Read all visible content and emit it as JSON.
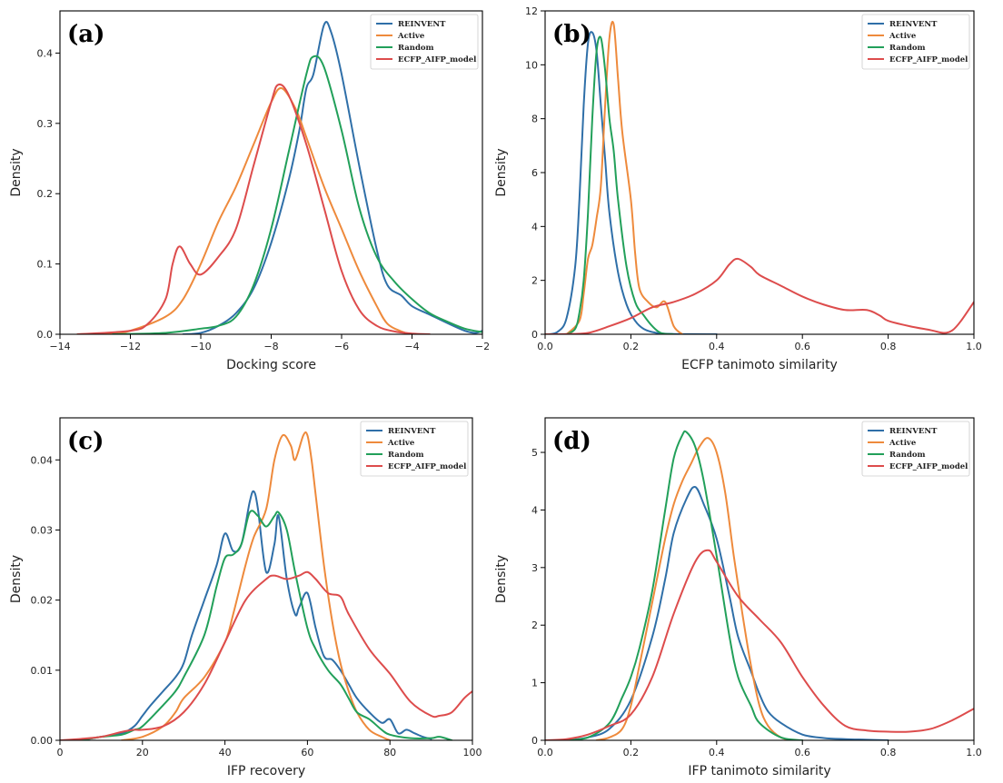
{
  "colors": {
    "REINVENT": "#2f6fa8",
    "Active": "#ee8a3c",
    "Random": "#22a05a",
    "ECFP_AIFP_model": "#dd4c4c"
  },
  "chart_data": [
    {
      "type": "line",
      "panel_label": "(a)",
      "title": "",
      "xlabel": "Docking score",
      "ylabel": "Density",
      "xlim": [
        -14,
        -2
      ],
      "ylim": [
        0,
        0.46
      ],
      "xticks": [
        -14,
        -12,
        -10,
        -8,
        -6,
        -4,
        -2
      ],
      "xtick_labels": [
        "−14",
        "−12",
        "−10",
        "−8",
        "−6",
        "−4",
        "−2"
      ],
      "yticks": [
        0.0,
        0.1,
        0.2,
        0.3,
        0.4
      ],
      "ytick_labels": [
        "0.0",
        "0.1",
        "0.2",
        "0.3",
        "0.4"
      ],
      "legend": "top-right",
      "series": [
        {
          "name": "REINVENT",
          "x": [
            -10.5,
            -10,
            -9.5,
            -9,
            -8.5,
            -8,
            -7.5,
            -7.2,
            -7,
            -6.8,
            -6.5,
            -6.3,
            -6,
            -5.5,
            -5,
            -4.7,
            -4.3,
            -4,
            -3.5,
            -3,
            -2.5,
            -2.2,
            -2
          ],
          "y": [
            0,
            0.002,
            0.012,
            0.03,
            0.065,
            0.13,
            0.22,
            0.29,
            0.35,
            0.37,
            0.44,
            0.43,
            0.37,
            0.24,
            0.12,
            0.07,
            0.055,
            0.04,
            0.028,
            0.016,
            0.005,
            0.002,
            0.005
          ]
        },
        {
          "name": "Active",
          "x": [
            -13.5,
            -12.5,
            -12,
            -11,
            -10.5,
            -10,
            -9.5,
            -9,
            -8.5,
            -8,
            -7.7,
            -7.3,
            -7,
            -6.5,
            -6,
            -5.5,
            -5,
            -4.7,
            -4.3,
            -4
          ],
          "y": [
            0,
            0.002,
            0.005,
            0.025,
            0.05,
            0.1,
            0.16,
            0.21,
            0.27,
            0.33,
            0.35,
            0.32,
            0.28,
            0.21,
            0.15,
            0.09,
            0.04,
            0.015,
            0.004,
            0
          ]
        },
        {
          "name": "Random",
          "x": [
            -12.5,
            -11,
            -10,
            -9.5,
            -9,
            -8.5,
            -8,
            -7.5,
            -7,
            -6.8,
            -6.5,
            -6,
            -5.5,
            -5,
            -4.5,
            -4,
            -3.5,
            -3,
            -2.5,
            -2
          ],
          "y": [
            0,
            0.002,
            0.008,
            0.012,
            0.025,
            0.07,
            0.15,
            0.26,
            0.37,
            0.395,
            0.38,
            0.29,
            0.18,
            0.11,
            0.075,
            0.05,
            0.03,
            0.018,
            0.008,
            0.003
          ]
        },
        {
          "name": "ECFP_AIFP_model",
          "x": [
            -13.5,
            -12,
            -11.5,
            -11,
            -10.8,
            -10.6,
            -10.3,
            -10,
            -9.5,
            -9,
            -8.5,
            -8,
            -7.8,
            -7.5,
            -7,
            -6.5,
            -6,
            -5.5,
            -5,
            -4.5,
            -4,
            -3.5
          ],
          "y": [
            0,
            0.005,
            0.015,
            0.05,
            0.1,
            0.125,
            0.1,
            0.085,
            0.11,
            0.15,
            0.24,
            0.33,
            0.355,
            0.34,
            0.27,
            0.18,
            0.09,
            0.035,
            0.012,
            0.004,
            0.001,
            0
          ]
        }
      ]
    },
    {
      "type": "line",
      "panel_label": "(b)",
      "title": "",
      "xlabel": "ECFP tanimoto similarity",
      "ylabel": "Density",
      "xlim": [
        0,
        1
      ],
      "ylim": [
        0,
        12
      ],
      "xticks": [
        0,
        0.2,
        0.4,
        0.6,
        0.8,
        1.0
      ],
      "xtick_labels": [
        "0.0",
        "0.2",
        "0.4",
        "0.6",
        "0.8",
        "1.0"
      ],
      "yticks": [
        0,
        2,
        4,
        6,
        8,
        10,
        12
      ],
      "ytick_labels": [
        "0",
        "2",
        "4",
        "6",
        "8",
        "10",
        "12"
      ],
      "legend": "top-right",
      "series": [
        {
          "name": "REINVENT",
          "x": [
            0.01,
            0.03,
            0.05,
            0.07,
            0.08,
            0.09,
            0.1,
            0.11,
            0.12,
            0.13,
            0.14,
            0.15,
            0.17,
            0.19,
            0.21,
            0.23,
            0.26,
            0.3,
            0.4
          ],
          "y": [
            0,
            0.1,
            0.6,
            2.5,
            5,
            8.5,
            10.8,
            11.2,
            10.5,
            8.5,
            6.5,
            4.5,
            2.3,
            1.1,
            0.5,
            0.2,
            0.05,
            0.01,
            0
          ]
        },
        {
          "name": "Active",
          "x": [
            0.05,
            0.08,
            0.09,
            0.1,
            0.11,
            0.12,
            0.13,
            0.14,
            0.15,
            0.16,
            0.17,
            0.18,
            0.2,
            0.21,
            0.22,
            0.24,
            0.26,
            0.28,
            0.3,
            0.32
          ],
          "y": [
            0,
            0.5,
            1.5,
            2.8,
            3.3,
            4.3,
            5.5,
            8.5,
            11,
            11.5,
            9.5,
            7.5,
            5,
            3,
            1.7,
            1.2,
            1,
            1.2,
            0.3,
            0
          ]
        },
        {
          "name": "Random",
          "x": [
            0.05,
            0.07,
            0.08,
            0.09,
            0.1,
            0.11,
            0.12,
            0.13,
            0.14,
            0.15,
            0.16,
            0.17,
            0.19,
            0.21,
            0.23,
            0.25,
            0.27,
            0.3
          ],
          "y": [
            0,
            0.2,
            0.8,
            2,
            4.5,
            8,
            10.5,
            11,
            9.8,
            8,
            6.8,
            5,
            2.5,
            1.2,
            0.7,
            0.3,
            0.05,
            0
          ]
        },
        {
          "name": "ECFP_AIFP_model",
          "x": [
            0,
            0.05,
            0.1,
            0.15,
            0.2,
            0.25,
            0.3,
            0.35,
            0.4,
            0.43,
            0.45,
            0.48,
            0.5,
            0.55,
            0.6,
            0.65,
            0.7,
            0.75,
            0.78,
            0.8,
            0.85,
            0.9,
            0.93,
            0.95,
            0.97,
            1.0
          ],
          "y": [
            0,
            0.01,
            0.05,
            0.3,
            0.6,
            1,
            1.2,
            1.5,
            2,
            2.6,
            2.8,
            2.5,
            2.2,
            1.8,
            1.4,
            1.1,
            0.9,
            0.9,
            0.7,
            0.5,
            0.3,
            0.15,
            0.05,
            0.15,
            0.5,
            1.2
          ]
        }
      ]
    },
    {
      "type": "line",
      "panel_label": "(c)",
      "title": "",
      "xlabel": "IFP recovery",
      "ylabel": "Density",
      "xlim": [
        0,
        100
      ],
      "ylim": [
        0,
        0.046
      ],
      "xticks": [
        0,
        20,
        40,
        60,
        80,
        100
      ],
      "xtick_labels": [
        "0",
        "20",
        "40",
        "60",
        "80",
        "100"
      ],
      "yticks": [
        0.0,
        0.01,
        0.02,
        0.03,
        0.04
      ],
      "ytick_labels": [
        "0.00",
        "0.01",
        "0.02",
        "0.03",
        "0.04"
      ],
      "legend": "top-right",
      "series": [
        {
          "name": "REINVENT",
          "x": [
            5,
            10,
            15,
            18,
            20,
            22,
            25,
            28,
            30,
            32,
            35,
            38,
            40,
            42,
            44,
            46,
            47,
            48,
            50,
            52,
            53,
            55,
            57,
            58,
            60,
            62,
            64,
            66,
            68,
            70,
            72,
            75,
            78,
            80,
            82,
            84,
            86,
            88,
            90
          ],
          "y": [
            0,
            0.0005,
            0.001,
            0.002,
            0.0035,
            0.005,
            0.007,
            0.009,
            0.011,
            0.015,
            0.02,
            0.025,
            0.0295,
            0.027,
            0.028,
            0.034,
            0.0355,
            0.033,
            0.024,
            0.028,
            0.032,
            0.023,
            0.018,
            0.019,
            0.021,
            0.016,
            0.012,
            0.0115,
            0.01,
            0.008,
            0.006,
            0.004,
            0.0025,
            0.003,
            0.001,
            0.0015,
            0.001,
            0.0005,
            0.0002
          ]
        },
        {
          "name": "Active",
          "x": [
            15,
            20,
            25,
            28,
            30,
            35,
            40,
            42,
            45,
            47,
            50,
            52,
            54,
            56,
            57,
            59,
            60,
            61,
            62,
            64,
            66,
            68,
            70,
            72,
            75,
            78,
            80
          ],
          "y": [
            0,
            0.0005,
            0.002,
            0.004,
            0.006,
            0.009,
            0.014,
            0.018,
            0.025,
            0.029,
            0.033,
            0.04,
            0.0435,
            0.042,
            0.04,
            0.0435,
            0.0435,
            0.04,
            0.035,
            0.025,
            0.017,
            0.011,
            0.007,
            0.004,
            0.0015,
            0.0005,
            0
          ]
        },
        {
          "name": "Random",
          "x": [
            5,
            10,
            15,
            18,
            20,
            25,
            28,
            30,
            35,
            38,
            40,
            42,
            44,
            46,
            48,
            50,
            52,
            53,
            55,
            57,
            60,
            62,
            65,
            68,
            70,
            72,
            75,
            78,
            80,
            85,
            90,
            92,
            95
          ],
          "y": [
            0,
            0.0005,
            0.0008,
            0.0015,
            0.002,
            0.005,
            0.007,
            0.009,
            0.015,
            0.022,
            0.026,
            0.0265,
            0.028,
            0.0325,
            0.032,
            0.0305,
            0.032,
            0.0325,
            0.03,
            0.024,
            0.016,
            0.013,
            0.01,
            0.008,
            0.006,
            0.004,
            0.003,
            0.0015,
            0.0008,
            0.0003,
            0.0003,
            0.0005,
            0
          ]
        },
        {
          "name": "ECFP_AIFP_model",
          "x": [
            0,
            5,
            10,
            15,
            18,
            20,
            25,
            30,
            35,
            40,
            45,
            50,
            52,
            55,
            58,
            60,
            62,
            65,
            68,
            70,
            75,
            80,
            85,
            90,
            92,
            95,
            98,
            100
          ],
          "y": [
            0,
            0.0002,
            0.0005,
            0.0012,
            0.0015,
            0.0015,
            0.002,
            0.004,
            0.008,
            0.014,
            0.02,
            0.023,
            0.0235,
            0.023,
            0.0235,
            0.024,
            0.023,
            0.021,
            0.0205,
            0.018,
            0.013,
            0.0095,
            0.0055,
            0.0035,
            0.0035,
            0.004,
            0.006,
            0.007
          ]
        }
      ]
    },
    {
      "type": "line",
      "panel_label": "(d)",
      "title": "",
      "xlabel": "IFP tanimoto similarity",
      "ylabel": "Density",
      "xlim": [
        0,
        1
      ],
      "ylim": [
        0,
        5.6
      ],
      "xticks": [
        0,
        0.2,
        0.4,
        0.6,
        0.8,
        1.0
      ],
      "xtick_labels": [
        "0.0",
        "0.2",
        "0.4",
        "0.6",
        "0.8",
        "1.0"
      ],
      "yticks": [
        0,
        1,
        2,
        3,
        4,
        5
      ],
      "ytick_labels": [
        "0",
        "1",
        "2",
        "3",
        "4",
        "5"
      ],
      "legend": "top-right",
      "series": [
        {
          "name": "REINVENT",
          "x": [
            0.05,
            0.1,
            0.15,
            0.2,
            0.25,
            0.28,
            0.3,
            0.33,
            0.35,
            0.37,
            0.4,
            0.43,
            0.45,
            0.48,
            0.5,
            0.52,
            0.55,
            0.6,
            0.65,
            0.7,
            0.75,
            0.8
          ],
          "y": [
            0,
            0.05,
            0.2,
            0.7,
            1.8,
            2.8,
            3.6,
            4.2,
            4.4,
            4.1,
            3.5,
            2.5,
            1.8,
            1.2,
            0.8,
            0.5,
            0.3,
            0.1,
            0.04,
            0.02,
            0.01,
            0
          ]
        },
        {
          "name": "Active",
          "x": [
            0.12,
            0.15,
            0.18,
            0.2,
            0.22,
            0.25,
            0.28,
            0.3,
            0.32,
            0.34,
            0.36,
            0.38,
            0.4,
            0.42,
            0.44,
            0.46,
            0.48,
            0.5,
            0.52,
            0.55,
            0.58
          ],
          "y": [
            0,
            0.05,
            0.2,
            0.6,
            1.3,
            2.4,
            3.5,
            4.1,
            4.5,
            4.8,
            5.1,
            5.25,
            5,
            4.3,
            3.2,
            2.2,
            1.3,
            0.6,
            0.25,
            0.05,
            0
          ]
        },
        {
          "name": "Random",
          "x": [
            0.05,
            0.1,
            0.15,
            0.18,
            0.2,
            0.22,
            0.25,
            0.28,
            0.3,
            0.32,
            0.33,
            0.35,
            0.37,
            0.4,
            0.43,
            0.45,
            0.48,
            0.5,
            0.55,
            0.6
          ],
          "y": [
            0,
            0.05,
            0.3,
            0.75,
            1.1,
            1.6,
            2.6,
            4,
            4.9,
            5.3,
            5.35,
            5.1,
            4.5,
            3.2,
            1.8,
            1.1,
            0.6,
            0.3,
            0.05,
            0
          ]
        },
        {
          "name": "ECFP_AIFP_model",
          "x": [
            0,
            0.05,
            0.1,
            0.15,
            0.2,
            0.25,
            0.3,
            0.35,
            0.38,
            0.4,
            0.45,
            0.5,
            0.55,
            0.6,
            0.65,
            0.7,
            0.75,
            0.8,
            0.85,
            0.9,
            0.95,
            1.0
          ],
          "y": [
            0,
            0.02,
            0.1,
            0.25,
            0.45,
            1.1,
            2.2,
            3.1,
            3.3,
            3.1,
            2.5,
            2.1,
            1.7,
            1.1,
            0.6,
            0.25,
            0.17,
            0.15,
            0.15,
            0.2,
            0.35,
            0.55
          ]
        }
      ]
    }
  ]
}
